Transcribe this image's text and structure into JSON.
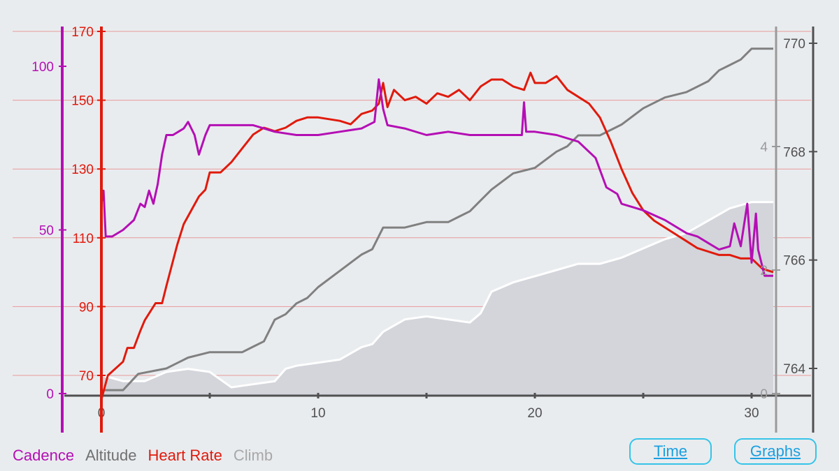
{
  "colors": {
    "cadence": "#b40fb4",
    "altitude": "#808080",
    "heart_rate": "#e01a0c",
    "climb": "#ffffff",
    "climb_fill": "#d3d5db",
    "axis": "#505050",
    "grid": "#e89a9a"
  },
  "legend": [
    "Cadence",
    "Altitude",
    "Heart Rate",
    "Climb"
  ],
  "buttons": {
    "time": "Time",
    "graphs": "Graphs"
  },
  "chart_data": {
    "type": "line",
    "x_axis": {
      "range": [
        0,
        31
      ],
      "ticks": [
        "0",
        "10",
        "20",
        "30"
      ]
    },
    "axes": {
      "cadence": {
        "range": [
          0,
          100
        ],
        "ticks": [
          "0",
          "50",
          "100"
        ]
      },
      "heart_rate": {
        "range": [
          63,
          170
        ],
        "ticks": [
          "70",
          "90",
          "110",
          "130",
          "150",
          "170"
        ]
      },
      "altitude": {
        "range": [
          763.5,
          770.6
        ],
        "ticks": [
          "764",
          "766",
          "768",
          "770"
        ]
      },
      "climb": {
        "range": [
          0,
          5.0
        ],
        "ticks": [
          "0",
          "2",
          "4"
        ]
      }
    },
    "series": [
      {
        "name": "Cadence",
        "axis": "cadence",
        "points": [
          [
            0,
            58
          ],
          [
            0.1,
            62
          ],
          [
            0.2,
            48
          ],
          [
            0.5,
            48
          ],
          [
            1,
            50
          ],
          [
            1.5,
            53
          ],
          [
            1.8,
            58
          ],
          [
            2,
            57
          ],
          [
            2.2,
            62
          ],
          [
            2.4,
            58
          ],
          [
            2.6,
            64
          ],
          [
            2.8,
            73
          ],
          [
            3,
            79
          ],
          [
            3.3,
            79
          ],
          [
            3.8,
            81
          ],
          [
            4,
            83
          ],
          [
            4.3,
            79
          ],
          [
            4.5,
            73
          ],
          [
            4.8,
            79
          ],
          [
            5,
            82
          ],
          [
            6,
            82
          ],
          [
            7,
            82
          ],
          [
            7.5,
            81
          ],
          [
            8,
            80
          ],
          [
            9,
            79
          ],
          [
            10,
            79
          ],
          [
            11,
            80
          ],
          [
            12,
            81
          ],
          [
            12.6,
            83
          ],
          [
            12.8,
            96
          ],
          [
            13,
            87
          ],
          [
            13.2,
            82
          ],
          [
            14,
            81
          ],
          [
            15,
            79
          ],
          [
            16,
            80
          ],
          [
            17,
            79
          ],
          [
            18,
            79
          ],
          [
            18.5,
            79
          ],
          [
            19,
            79
          ],
          [
            19.4,
            79
          ],
          [
            19.5,
            89
          ],
          [
            19.6,
            80
          ],
          [
            20,
            80
          ],
          [
            21,
            79
          ],
          [
            22,
            77
          ],
          [
            22.8,
            72
          ],
          [
            23.3,
            63
          ],
          [
            23.8,
            61
          ],
          [
            24,
            58
          ],
          [
            24.5,
            57
          ],
          [
            25,
            56
          ],
          [
            26,
            53
          ],
          [
            27,
            49
          ],
          [
            27.5,
            48
          ],
          [
            28,
            46
          ],
          [
            28.5,
            44
          ],
          [
            29,
            45
          ],
          [
            29.2,
            52
          ],
          [
            29.5,
            45
          ],
          [
            29.8,
            58
          ],
          [
            30,
            40
          ],
          [
            30.2,
            55
          ],
          [
            30.3,
            44
          ],
          [
            30.6,
            36
          ],
          [
            31,
            36
          ]
        ]
      },
      {
        "name": "Heart Rate",
        "axis": "heart_rate",
        "points": [
          [
            0,
            63
          ],
          [
            0.3,
            70
          ],
          [
            1,
            74
          ],
          [
            1.2,
            78
          ],
          [
            1.5,
            78
          ],
          [
            1.8,
            83
          ],
          [
            2,
            86
          ],
          [
            2.5,
            91
          ],
          [
            2.8,
            91
          ],
          [
            3,
            96
          ],
          [
            3.5,
            108
          ],
          [
            3.8,
            114
          ],
          [
            4.5,
            122
          ],
          [
            4.8,
            124
          ],
          [
            5,
            129
          ],
          [
            5.5,
            129
          ],
          [
            6,
            132
          ],
          [
            6.5,
            136
          ],
          [
            7,
            140
          ],
          [
            7.5,
            142
          ],
          [
            8,
            141
          ],
          [
            8.5,
            142
          ],
          [
            9,
            144
          ],
          [
            9.5,
            145
          ],
          [
            10,
            145
          ],
          [
            11,
            144
          ],
          [
            11.5,
            143
          ],
          [
            12,
            146
          ],
          [
            12.5,
            147
          ],
          [
            12.8,
            149
          ],
          [
            13,
            155
          ],
          [
            13.2,
            148
          ],
          [
            13.5,
            153
          ],
          [
            14,
            150
          ],
          [
            14.5,
            151
          ],
          [
            15,
            149
          ],
          [
            15.5,
            152
          ],
          [
            16,
            151
          ],
          [
            16.5,
            153
          ],
          [
            17,
            150
          ],
          [
            17.5,
            154
          ],
          [
            18,
            156
          ],
          [
            18.5,
            156
          ],
          [
            19,
            154
          ],
          [
            19.5,
            153
          ],
          [
            19.8,
            158
          ],
          [
            20,
            155
          ],
          [
            20.5,
            155
          ],
          [
            21,
            157
          ],
          [
            21.5,
            153
          ],
          [
            22,
            151
          ],
          [
            22.5,
            149
          ],
          [
            23,
            145
          ],
          [
            23.5,
            138
          ],
          [
            24,
            130
          ],
          [
            24.5,
            123
          ],
          [
            25,
            118
          ],
          [
            25.5,
            115
          ],
          [
            26,
            113
          ],
          [
            26.5,
            111
          ],
          [
            27,
            109
          ],
          [
            27.5,
            107
          ],
          [
            28,
            106
          ],
          [
            28.5,
            105
          ],
          [
            29,
            105
          ],
          [
            29.5,
            104
          ],
          [
            30,
            104
          ],
          [
            30.5,
            101
          ],
          [
            31,
            100
          ]
        ]
      },
      {
        "name": "Altitude",
        "axis": "altitude",
        "points": [
          [
            0,
            763.6
          ],
          [
            1,
            763.6
          ],
          [
            1.7,
            763.9
          ],
          [
            3,
            764.0
          ],
          [
            4,
            764.2
          ],
          [
            5,
            764.3
          ],
          [
            6.5,
            764.3
          ],
          [
            7,
            764.4
          ],
          [
            7.5,
            764.5
          ],
          [
            8,
            764.9
          ],
          [
            8.5,
            765.0
          ],
          [
            9,
            765.2
          ],
          [
            9.5,
            765.3
          ],
          [
            10,
            765.5
          ],
          [
            11,
            765.8
          ],
          [
            12,
            766.1
          ],
          [
            12.5,
            766.2
          ],
          [
            13,
            766.6
          ],
          [
            14,
            766.6
          ],
          [
            15,
            766.7
          ],
          [
            16,
            766.7
          ],
          [
            16.5,
            766.8
          ],
          [
            17,
            766.9
          ],
          [
            17.5,
            767.1
          ],
          [
            18,
            767.3
          ],
          [
            19,
            767.6
          ],
          [
            20,
            767.7
          ],
          [
            21,
            768.0
          ],
          [
            21.5,
            768.1
          ],
          [
            22,
            768.3
          ],
          [
            23,
            768.3
          ],
          [
            24,
            768.5
          ],
          [
            25,
            768.8
          ],
          [
            26,
            769.0
          ],
          [
            27,
            769.1
          ],
          [
            28,
            769.3
          ],
          [
            28.5,
            769.5
          ],
          [
            29,
            769.6
          ],
          [
            29.5,
            769.7
          ],
          [
            30,
            769.9
          ],
          [
            31,
            769.9
          ]
        ]
      },
      {
        "name": "Climb",
        "axis": "climb",
        "points": [
          [
            0,
            0.3
          ],
          [
            1,
            0.2
          ],
          [
            2,
            0.2
          ],
          [
            3,
            0.35
          ],
          [
            4,
            0.4
          ],
          [
            5,
            0.35
          ],
          [
            6,
            0.1
          ],
          [
            7,
            0.15
          ],
          [
            8,
            0.2
          ],
          [
            8.5,
            0.4
          ],
          [
            9,
            0.45
          ],
          [
            10,
            0.5
          ],
          [
            11,
            0.55
          ],
          [
            12,
            0.75
          ],
          [
            12.5,
            0.8
          ],
          [
            13,
            1.0
          ],
          [
            14,
            1.2
          ],
          [
            15,
            1.25
          ],
          [
            16,
            1.2
          ],
          [
            17,
            1.15
          ],
          [
            17.5,
            1.3
          ],
          [
            18,
            1.65
          ],
          [
            19,
            1.8
          ],
          [
            20,
            1.9
          ],
          [
            21,
            2.0
          ],
          [
            22,
            2.1
          ],
          [
            23,
            2.1
          ],
          [
            24,
            2.2
          ],
          [
            25,
            2.35
          ],
          [
            26,
            2.5
          ],
          [
            27,
            2.6
          ],
          [
            28,
            2.8
          ],
          [
            29,
            3.0
          ],
          [
            30,
            3.1
          ],
          [
            31,
            3.1
          ]
        ]
      }
    ]
  }
}
